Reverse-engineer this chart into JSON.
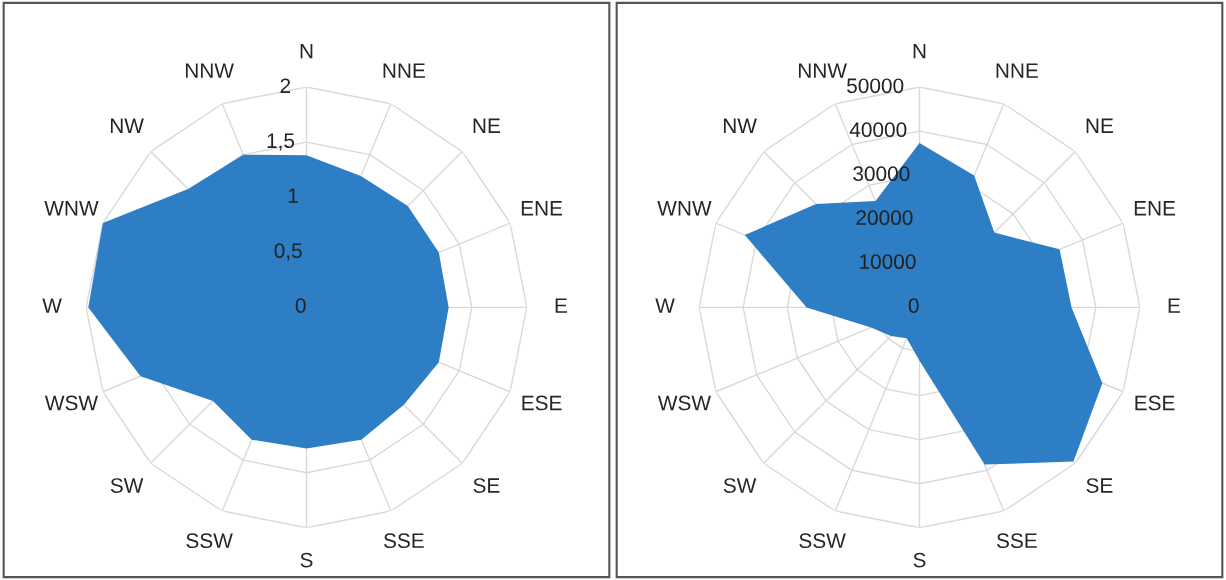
{
  "chart_data": [
    {
      "type": "radar",
      "categories": [
        "N",
        "NNE",
        "NE",
        "ENE",
        "E",
        "ESE",
        "SE",
        "SSE",
        "S",
        "SSW",
        "SW",
        "WSW",
        "W",
        "WNW",
        "NW",
        "NNW"
      ],
      "series": [
        {
          "color": "#2e7ec6",
          "values": [
            1.38,
            1.29,
            1.3,
            1.3,
            1.29,
            1.3,
            1.25,
            1.3,
            1.28,
            1.3,
            1.2,
            1.63,
            1.98,
            2.0,
            1.52,
            1.5
          ]
        }
      ],
      "ylim": [
        0,
        2
      ],
      "yticks": [
        0,
        {
          "value": 0.5,
          "label": "0,5"
        },
        1,
        {
          "value": 1.5,
          "label": "1,5"
        },
        2
      ],
      "grid": true
    },
    {
      "type": "radar",
      "categories": [
        "N",
        "NNE",
        "NE",
        "ENE",
        "E",
        "ESE",
        "SE",
        "SSE",
        "S",
        "SSW",
        "SW",
        "WSW",
        "W",
        "WNW",
        "NW",
        "NNW"
      ],
      "series": [
        {
          "color": "#2e7ec6",
          "values": [
            37300,
            32400,
            24000,
            34400,
            34500,
            44900,
            49400,
            38600,
            12100,
            7600,
            9200,
            11900,
            25600,
            42900,
            33200,
            26100
          ]
        }
      ],
      "ylim": [
        0,
        50000
      ],
      "yticks": [
        0,
        10000,
        20000,
        30000,
        40000,
        50000
      ],
      "grid": true
    }
  ]
}
